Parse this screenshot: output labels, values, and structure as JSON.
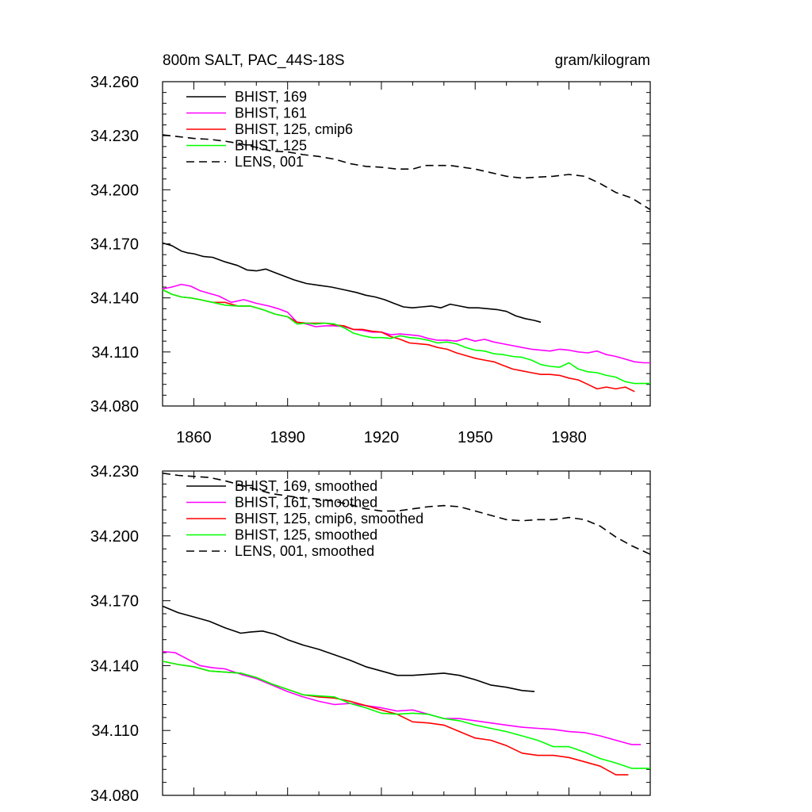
{
  "chart_data": [
    {
      "type": "line",
      "title": "800m SALT, PAC_44S-18S",
      "units": "gram/kilogram",
      "xlabel": "",
      "ylabel": "",
      "xlim": [
        1850,
        2006
      ],
      "ylim": [
        34.08,
        34.26
      ],
      "x_ticks": [
        1860,
        1890,
        1920,
        1950,
        1980
      ],
      "x_tick_labels": [
        "1860",
        "1890",
        "1920",
        "1950",
        "1980"
      ],
      "y_ticks": [
        34.08,
        34.11,
        34.14,
        34.17,
        34.2,
        34.23,
        34.26
      ],
      "y_tick_labels": [
        "34.080",
        "34.110",
        "34.140",
        "34.170",
        "34.200",
        "34.230",
        "34.260"
      ],
      "grid": false,
      "legend_placement": "top-left",
      "series": [
        {
          "name": "BHIST, 169",
          "color": "#000000",
          "dash": "solid",
          "x": [
            1850,
            1853,
            1856,
            1858,
            1860,
            1863,
            1866,
            1870,
            1874,
            1877,
            1880,
            1883,
            1886,
            1889,
            1892,
            1896,
            1900,
            1904,
            1908,
            1912,
            1915,
            1918,
            1921,
            1924,
            1927,
            1930,
            1933,
            1936,
            1939,
            1942,
            1945,
            1948,
            1951,
            1954,
            1957,
            1960,
            1963,
            1966,
            1969,
            1971
          ],
          "y": [
            34.1705,
            34.169,
            34.166,
            34.165,
            34.1645,
            34.163,
            34.1625,
            34.16,
            34.158,
            34.1555,
            34.155,
            34.156,
            34.154,
            34.152,
            34.15,
            34.148,
            34.147,
            34.146,
            34.1445,
            34.143,
            34.1415,
            34.1405,
            34.139,
            34.137,
            34.135,
            34.1345,
            34.135,
            34.1355,
            34.1345,
            34.1365,
            34.1355,
            34.1345,
            34.1345,
            34.134,
            34.1335,
            34.1325,
            34.13,
            34.1285,
            34.1275,
            34.1265
          ]
        },
        {
          "name": "BHIST, 161",
          "color": "#ff00ff",
          "dash": "solid",
          "x": [
            1850,
            1853,
            1856,
            1859,
            1862,
            1865,
            1868,
            1872,
            1876,
            1880,
            1884,
            1887,
            1890,
            1893,
            1896,
            1899,
            1902,
            1905,
            1908,
            1911,
            1914,
            1917,
            1920,
            1923,
            1926,
            1929,
            1932,
            1935,
            1938,
            1941,
            1944,
            1947,
            1950,
            1953,
            1956,
            1959,
            1962,
            1965,
            1968,
            1971,
            1974,
            1977,
            1980,
            1983,
            1986,
            1989,
            1992,
            1995,
            1998,
            2001,
            2004,
            2006
          ],
          "y": [
            34.145,
            34.146,
            34.1475,
            34.1465,
            34.144,
            34.1425,
            34.141,
            34.1375,
            34.139,
            34.137,
            34.1355,
            34.134,
            34.132,
            34.1265,
            34.1255,
            34.124,
            34.1245,
            34.1245,
            34.124,
            34.1225,
            34.122,
            34.121,
            34.121,
            34.1195,
            34.12,
            34.1195,
            34.119,
            34.1175,
            34.1165,
            34.1165,
            34.116,
            34.1175,
            34.116,
            34.117,
            34.1155,
            34.1145,
            34.1135,
            34.1125,
            34.1115,
            34.111,
            34.1105,
            34.1115,
            34.111,
            34.11,
            34.1095,
            34.1105,
            34.1085,
            34.1075,
            34.106,
            34.1045,
            34.104,
            34.104
          ]
        },
        {
          "name": "BHIST, 125, cmip6",
          "color": "#ff0000",
          "dash": "solid",
          "x": [
            1850,
            1853,
            1856,
            1859,
            1862,
            1866,
            1870,
            1874,
            1878,
            1882,
            1886,
            1890,
            1893,
            1896,
            1899,
            1902,
            1905,
            1908,
            1911,
            1914,
            1917,
            1920,
            1923,
            1926,
            1929,
            1932,
            1935,
            1938,
            1941,
            1944,
            1947,
            1950,
            1953,
            1956,
            1959,
            1962,
            1965,
            1968,
            1971,
            1974,
            1977,
            1980,
            1983,
            1986,
            1989,
            1992,
            1995,
            1998,
            2001
          ],
          "y": [
            34.1445,
            34.142,
            34.1405,
            34.14,
            34.139,
            34.1375,
            34.1375,
            34.1355,
            34.1355,
            34.1335,
            34.131,
            34.1295,
            34.1265,
            34.126,
            34.126,
            34.126,
            34.125,
            34.1245,
            34.1225,
            34.1225,
            34.1215,
            34.121,
            34.1185,
            34.117,
            34.115,
            34.1145,
            34.114,
            34.1125,
            34.1115,
            34.1095,
            34.108,
            34.1065,
            34.1055,
            34.1045,
            34.1025,
            34.1005,
            34.0995,
            34.0985,
            34.0975,
            34.0975,
            34.097,
            34.0955,
            34.0945,
            34.092,
            34.0895,
            34.0905,
            34.0895,
            34.0905,
            34.088
          ]
        },
        {
          "name": "BHIST, 125",
          "color": "#00ff00",
          "dash": "solid",
          "x": [
            1850,
            1853,
            1856,
            1859,
            1862,
            1866,
            1870,
            1874,
            1878,
            1882,
            1886,
            1890,
            1893,
            1896,
            1899,
            1902,
            1905,
            1908,
            1911,
            1914,
            1917,
            1920,
            1923,
            1926,
            1929,
            1932,
            1935,
            1938,
            1941,
            1944,
            1947,
            1950,
            1953,
            1956,
            1959,
            1962,
            1965,
            1968,
            1971,
            1974,
            1977,
            1980,
            1983,
            1986,
            1989,
            1992,
            1995,
            1998,
            2001,
            2004,
            2006
          ],
          "y": [
            34.1445,
            34.142,
            34.1405,
            34.14,
            34.139,
            34.1375,
            34.136,
            34.1355,
            34.1355,
            34.1335,
            34.131,
            34.1295,
            34.1255,
            34.126,
            34.1255,
            34.126,
            34.1255,
            34.1235,
            34.1205,
            34.119,
            34.118,
            34.118,
            34.1175,
            34.119,
            34.118,
            34.1175,
            34.1165,
            34.115,
            34.1155,
            34.1145,
            34.1125,
            34.111,
            34.1105,
            34.109,
            34.1085,
            34.1075,
            34.107,
            34.1055,
            34.103,
            34.102,
            34.1015,
            34.104,
            34.1005,
            34.099,
            34.0985,
            34.097,
            34.096,
            34.0935,
            34.0925,
            34.0925,
            34.0925
          ]
        },
        {
          "name": "LENS, 001",
          "color": "#000000",
          "dash": "dashed",
          "x": [
            1850,
            1855,
            1860,
            1865,
            1870,
            1875,
            1880,
            1885,
            1890,
            1895,
            1900,
            1905,
            1910,
            1915,
            1920,
            1925,
            1930,
            1934,
            1938,
            1942,
            1946,
            1950,
            1955,
            1960,
            1965,
            1970,
            1975,
            1980,
            1985,
            1990,
            1995,
            2000,
            2006
          ],
          "y": [
            34.2305,
            34.2295,
            34.2285,
            34.228,
            34.227,
            34.2255,
            34.2235,
            34.2215,
            34.221,
            34.2195,
            34.2185,
            34.217,
            34.2145,
            34.213,
            34.2125,
            34.2115,
            34.2115,
            34.2135,
            34.2135,
            34.2135,
            34.2125,
            34.2115,
            34.2095,
            34.2075,
            34.2065,
            34.207,
            34.2075,
            34.2085,
            34.2075,
            34.2035,
            34.1985,
            34.1955,
            34.189
          ]
        }
      ]
    },
    {
      "type": "line",
      "title": "",
      "xlabel": "",
      "ylabel": "",
      "xlim": [
        1850,
        2006
      ],
      "ylim": [
        34.08,
        34.23
      ],
      "x_ticks": [
        1860,
        1890,
        1920,
        1950,
        1980
      ],
      "y_ticks": [
        34.08,
        34.11,
        34.14,
        34.17,
        34.2,
        34.23
      ],
      "y_tick_labels": [
        "34.080",
        "34.110",
        "34.140",
        "34.170",
        "34.200",
        "34.230"
      ],
      "grid": false,
      "legend_placement": "top-left",
      "series": [
        {
          "name": "BHIST, 169, smoothed",
          "color": "#000000",
          "dash": "solid",
          "x": [
            1850,
            1855,
            1860,
            1865,
            1870,
            1875,
            1878,
            1882,
            1886,
            1890,
            1895,
            1900,
            1905,
            1910,
            1915,
            1920,
            1925,
            1930,
            1935,
            1940,
            1945,
            1950,
            1955,
            1960,
            1965,
            1969
          ],
          "y": [
            34.1675,
            34.1645,
            34.1625,
            34.1605,
            34.1575,
            34.155,
            34.1555,
            34.156,
            34.1545,
            34.152,
            34.1495,
            34.1475,
            34.145,
            34.1425,
            34.1395,
            34.1375,
            34.1355,
            34.1355,
            34.136,
            34.1365,
            34.1355,
            34.1335,
            34.131,
            34.13,
            34.1285,
            34.128
          ]
        },
        {
          "name": "BHIST, 161, smoothed",
          "color": "#ff00ff",
          "dash": "solid",
          "x": [
            1850,
            1854,
            1858,
            1862,
            1866,
            1870,
            1875,
            1880,
            1885,
            1890,
            1895,
            1900,
            1905,
            1910,
            1915,
            1920,
            1925,
            1930,
            1935,
            1940,
            1945,
            1950,
            1955,
            1960,
            1965,
            1970,
            1975,
            1980,
            1985,
            1990,
            1995,
            2000,
            2003
          ],
          "y": [
            34.1465,
            34.146,
            34.143,
            34.14,
            34.139,
            34.1385,
            34.136,
            34.134,
            34.131,
            34.128,
            34.1255,
            34.1235,
            34.122,
            34.1225,
            34.1215,
            34.1205,
            34.119,
            34.1195,
            34.1175,
            34.1155,
            34.1155,
            34.1145,
            34.1135,
            34.1125,
            34.1115,
            34.111,
            34.1105,
            34.1095,
            34.109,
            34.1075,
            34.1055,
            34.1035,
            34.1035
          ]
        },
        {
          "name": "BHIST, 125, cmip6, smoothed",
          "color": "#ff0000",
          "dash": "solid",
          "x": [
            1850,
            1855,
            1860,
            1865,
            1870,
            1875,
            1880,
            1885,
            1890,
            1895,
            1900,
            1905,
            1910,
            1915,
            1920,
            1925,
            1930,
            1935,
            1940,
            1945,
            1950,
            1955,
            1960,
            1965,
            1970,
            1975,
            1980,
            1985,
            1990,
            1995,
            1999
          ],
          "y": [
            34.142,
            34.1405,
            34.1395,
            34.1375,
            34.137,
            34.1365,
            34.1345,
            34.1315,
            34.129,
            34.1265,
            34.1255,
            34.125,
            34.1235,
            34.1215,
            34.1195,
            34.1175,
            34.114,
            34.1135,
            34.1125,
            34.1095,
            34.1065,
            34.1055,
            34.103,
            34.0995,
            34.0985,
            34.0985,
            34.0975,
            34.0955,
            34.0935,
            34.0895,
            34.0895
          ]
        },
        {
          "name": "BHIST, 125, smoothed",
          "color": "#00ff00",
          "dash": "solid",
          "x": [
            1850,
            1855,
            1860,
            1865,
            1870,
            1875,
            1880,
            1885,
            1890,
            1895,
            1900,
            1905,
            1910,
            1915,
            1920,
            1925,
            1930,
            1935,
            1940,
            1945,
            1950,
            1955,
            1960,
            1965,
            1970,
            1975,
            1980,
            1985,
            1990,
            1995,
            2000,
            2006
          ],
          "y": [
            34.142,
            34.1405,
            34.1395,
            34.1375,
            34.137,
            34.1365,
            34.1345,
            34.1315,
            34.129,
            34.1265,
            34.126,
            34.1255,
            34.1225,
            34.1205,
            34.118,
            34.1175,
            34.118,
            34.1175,
            34.1155,
            34.1145,
            34.1125,
            34.111,
            34.1095,
            34.1075,
            34.1055,
            34.1025,
            34.1025,
            34.1,
            34.097,
            34.095,
            34.0925,
            34.0925
          ]
        },
        {
          "name": "LENS, 001, smoothed",
          "color": "#000000",
          "dash": "dashed",
          "x": [
            1850,
            1855,
            1860,
            1865,
            1870,
            1875,
            1880,
            1885,
            1890,
            1895,
            1900,
            1905,
            1910,
            1915,
            1920,
            1925,
            1930,
            1935,
            1940,
            1945,
            1950,
            1955,
            1960,
            1965,
            1970,
            1975,
            1980,
            1985,
            1990,
            1995,
            2000,
            2006
          ],
          "y": [
            34.229,
            34.228,
            34.2275,
            34.227,
            34.2255,
            34.2235,
            34.2215,
            34.2195,
            34.2185,
            34.2175,
            34.217,
            34.216,
            34.2145,
            34.2125,
            34.2115,
            34.2115,
            34.2125,
            34.2135,
            34.214,
            34.2135,
            34.2115,
            34.2095,
            34.2075,
            34.207,
            34.2075,
            34.2075,
            34.2085,
            34.2075,
            34.2045,
            34.1995,
            34.1955,
            34.1915
          ]
        }
      ]
    }
  ]
}
